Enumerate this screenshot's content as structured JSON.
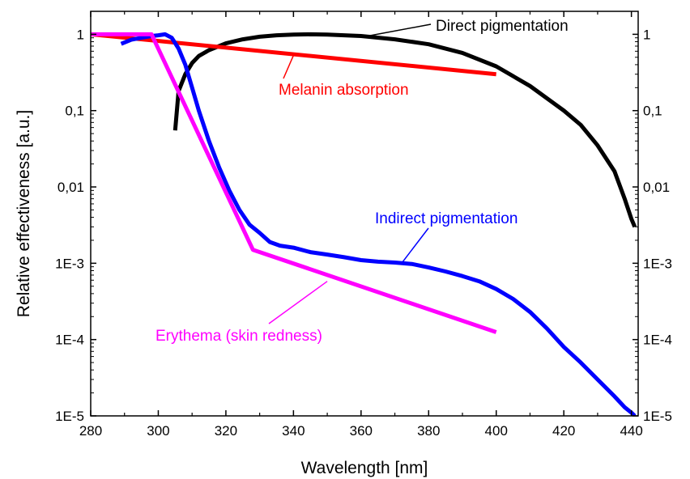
{
  "chart_data": {
    "type": "line",
    "xlabel": "Wavelength [nm]",
    "ylabel": "Relative effectiveness [a.u.]",
    "xlim": [
      280,
      442
    ],
    "ylim": [
      1e-05,
      2
    ],
    "y_scale": "log",
    "x_ticks": [
      280,
      300,
      320,
      340,
      360,
      380,
      400,
      420,
      440
    ],
    "y_ticks": [
      {
        "value": 1,
        "label": "1"
      },
      {
        "value": 0.1,
        "label": "0,1"
      },
      {
        "value": 0.01,
        "label": "0,01"
      },
      {
        "value": 0.001,
        "label": "1E-3"
      },
      {
        "value": 0.0001,
        "label": "1E-4"
      },
      {
        "value": 1e-05,
        "label": "1E-5"
      }
    ],
    "right_axis_mirror": true,
    "series": [
      {
        "name": "Direct pigmentation",
        "color": "#000000",
        "x": [
          305,
          306,
          308,
          310,
          312,
          315,
          320,
          325,
          330,
          335,
          340,
          345,
          350,
          360,
          370,
          380,
          390,
          400,
          410,
          420,
          425,
          430,
          435,
          438,
          440,
          441
        ],
        "y": [
          0.055,
          0.18,
          0.3,
          0.42,
          0.52,
          0.62,
          0.76,
          0.86,
          0.93,
          0.97,
          0.99,
          1.0,
          0.99,
          0.95,
          0.86,
          0.74,
          0.57,
          0.38,
          0.21,
          0.1,
          0.065,
          0.035,
          0.016,
          0.007,
          0.0038,
          0.003
        ]
      },
      {
        "name": "Melanin absorption",
        "color": "#ff0000",
        "x": [
          280,
          400
        ],
        "y": [
          1.0,
          0.3
        ]
      },
      {
        "name": "Indirect pigmentation",
        "color": "#0000ff",
        "x": [
          289,
          292,
          295,
          298,
          300,
          302,
          304,
          306,
          308,
          310,
          312,
          315,
          318,
          321,
          324,
          327,
          330,
          333,
          336,
          340,
          345,
          350,
          355,
          360,
          365,
          370,
          375,
          380,
          385,
          390,
          395,
          400,
          405,
          410,
          415,
          420,
          425,
          430,
          435,
          438,
          440,
          441
        ],
        "y": [
          0.75,
          0.85,
          0.9,
          0.95,
          0.97,
          1.0,
          0.9,
          0.65,
          0.4,
          0.2,
          0.1,
          0.04,
          0.018,
          0.009,
          0.005,
          0.0032,
          0.0025,
          0.0019,
          0.0017,
          0.0016,
          0.0014,
          0.0013,
          0.0012,
          0.0011,
          0.00105,
          0.00102,
          0.00098,
          0.00088,
          0.00078,
          0.00068,
          0.00058,
          0.00046,
          0.00034,
          0.00023,
          0.00014,
          8e-05,
          5e-05,
          3e-05,
          1.8e-05,
          1.3e-05,
          1.1e-05,
          1e-05
        ]
      },
      {
        "name": "Erythema (skin redness)",
        "color": "#ff00ff",
        "x": [
          280,
          298,
          328,
          400
        ],
        "y": [
          1.0,
          1.0,
          0.0015,
          0.000125
        ]
      }
    ]
  }
}
